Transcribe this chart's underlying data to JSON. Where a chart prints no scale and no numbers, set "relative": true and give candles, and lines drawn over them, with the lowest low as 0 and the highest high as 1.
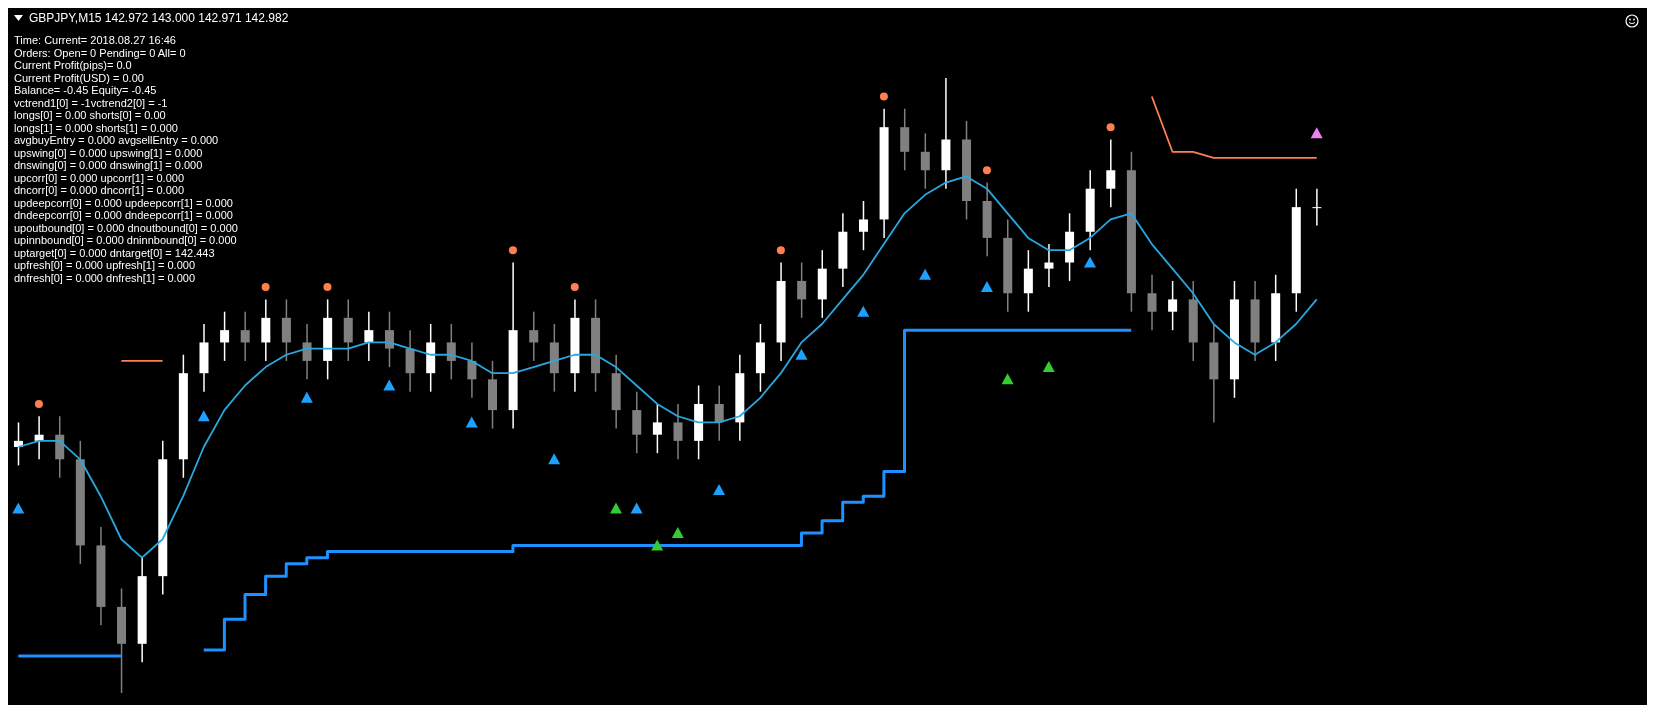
{
  "chart_data": {
    "type": "candlestick",
    "title": "GBPJPY,M15  142.972 143.000 142.971 142.982",
    "relative": true,
    "categories": [
      null,
      null,
      null,
      null,
      null,
      null,
      null,
      null,
      null,
      null,
      null,
      null,
      null,
      null,
      null,
      null,
      null,
      null,
      null,
      null,
      null,
      null,
      null,
      null,
      null,
      null,
      null,
      null,
      null,
      null,
      null,
      null,
      null,
      null,
      null,
      null,
      null,
      null,
      null,
      null,
      null,
      null,
      null,
      null,
      null,
      null,
      null,
      null,
      null,
      null,
      null,
      null,
      null,
      null,
      null,
      null,
      null,
      null,
      null,
      null,
      null,
      null,
      null,
      null
    ],
    "ohlc": [
      [
        0.4,
        0.44,
        0.37,
        0.41
      ],
      [
        0.41,
        0.45,
        0.38,
        0.42
      ],
      [
        0.42,
        0.45,
        0.35,
        0.38
      ],
      [
        0.38,
        0.41,
        0.21,
        0.24
      ],
      [
        0.24,
        0.27,
        0.11,
        0.14
      ],
      [
        0.14,
        0.17,
        0,
        0.08
      ],
      [
        0.08,
        0.22,
        0.05,
        0.19
      ],
      [
        0.19,
        0.41,
        0.16,
        0.38
      ],
      [
        0.38,
        0.55,
        0.35,
        0.52
      ],
      [
        0.52,
        0.6,
        0.49,
        0.57
      ],
      [
        0.57,
        0.62,
        0.54,
        0.59
      ],
      [
        0.59,
        0.62,
        0.54,
        0.57
      ],
      [
        0.57,
        0.64,
        0.54,
        0.61
      ],
      [
        0.61,
        0.64,
        0.54,
        0.57
      ],
      [
        0.57,
        0.6,
        0.51,
        0.54
      ],
      [
        0.54,
        0.64,
        0.51,
        0.61
      ],
      [
        0.61,
        0.64,
        0.54,
        0.57
      ],
      [
        0.57,
        0.62,
        0.54,
        0.59
      ],
      [
        0.59,
        0.62,
        0.53,
        0.56
      ],
      [
        0.56,
        0.59,
        0.49,
        0.52
      ],
      [
        0.52,
        0.6,
        0.49,
        0.57
      ],
      [
        0.57,
        0.6,
        0.51,
        0.54
      ],
      [
        0.54,
        0.57,
        0.48,
        0.51
      ],
      [
        0.51,
        0.54,
        0.43,
        0.46
      ],
      [
        0.46,
        0.7,
        0.43,
        0.59
      ],
      [
        0.59,
        0.62,
        0.54,
        0.57
      ],
      [
        0.57,
        0.6,
        0.49,
        0.52
      ],
      [
        0.52,
        0.64,
        0.49,
        0.61
      ],
      [
        0.61,
        0.64,
        0.49,
        0.52
      ],
      [
        0.52,
        0.55,
        0.43,
        0.46
      ],
      [
        0.46,
        0.49,
        0.39,
        0.42
      ],
      [
        0.42,
        0.47,
        0.39,
        0.44
      ],
      [
        0.44,
        0.47,
        0.38,
        0.41
      ],
      [
        0.41,
        0.5,
        0.38,
        0.47
      ],
      [
        0.47,
        0.5,
        0.41,
        0.44
      ],
      [
        0.44,
        0.55,
        0.41,
        0.52
      ],
      [
        0.52,
        0.6,
        0.49,
        0.57
      ],
      [
        0.57,
        0.7,
        0.54,
        0.67
      ],
      [
        0.67,
        0.7,
        0.61,
        0.64
      ],
      [
        0.64,
        0.72,
        0.61,
        0.69
      ],
      [
        0.69,
        0.78,
        0.66,
        0.75
      ],
      [
        0.75,
        0.8,
        0.72,
        0.77
      ],
      [
        0.77,
        0.95,
        0.74,
        0.92
      ],
      [
        0.92,
        0.95,
        0.85,
        0.88
      ],
      [
        0.88,
        0.91,
        0.82,
        0.85
      ],
      [
        0.85,
        1,
        0.82,
        0.9
      ],
      [
        0.9,
        0.93,
        0.77,
        0.8
      ],
      [
        0.8,
        0.83,
        0.71,
        0.74
      ],
      [
        0.74,
        0.77,
        0.62,
        0.65
      ],
      [
        0.65,
        0.72,
        0.62,
        0.69
      ],
      [
        0.69,
        0.73,
        0.66,
        0.7
      ],
      [
        0.7,
        0.78,
        0.67,
        0.75
      ],
      [
        0.75,
        0.85,
        0.72,
        0.82
      ],
      [
        0.82,
        0.9,
        0.79,
        0.85
      ],
      [
        0.85,
        0.88,
        0.62,
        0.65
      ],
      [
        0.65,
        0.68,
        0.59,
        0.62
      ],
      [
        0.62,
        0.67,
        0.59,
        0.64
      ],
      [
        0.64,
        0.67,
        0.54,
        0.57
      ],
      [
        0.57,
        0.6,
        0.44,
        0.51
      ],
      [
        0.51,
        0.67,
        0.48,
        0.64
      ],
      [
        0.64,
        0.67,
        0.54,
        0.57
      ],
      [
        0.57,
        0.68,
        0.54,
        0.65
      ],
      [
        0.65,
        0.82,
        0.62,
        0.79
      ],
      [
        0.79,
        0.82,
        0.76,
        0.79
      ]
    ],
    "colors": [
      "#ffffff",
      "#ffffff",
      "#808080",
      "#808080",
      "#808080",
      "#808080",
      "#ffffff",
      "#ffffff",
      "#ffffff",
      "#ffffff",
      "#ffffff",
      "#808080",
      "#ffffff",
      "#808080",
      "#808080",
      "#ffffff",
      "#808080",
      "#ffffff",
      "#808080",
      "#808080",
      "#ffffff",
      "#808080",
      "#808080",
      "#808080",
      "#ffffff",
      "#808080",
      "#808080",
      "#ffffff",
      "#808080",
      "#808080",
      "#808080",
      "#ffffff",
      "#808080",
      "#ffffff",
      "#808080",
      "#ffffff",
      "#ffffff",
      "#ffffff",
      "#808080",
      "#ffffff",
      "#ffffff",
      "#ffffff",
      "#ffffff",
      "#808080",
      "#808080",
      "#ffffff",
      "#808080",
      "#808080",
      "#808080",
      "#ffffff",
      "#ffffff",
      "#ffffff",
      "#ffffff",
      "#ffffff",
      "#808080",
      "#808080",
      "#ffffff",
      "#808080",
      "#808080",
      "#ffffff",
      "#808080",
      "#ffffff",
      "#ffffff",
      "#ffffff"
    ],
    "series": [
      {
        "type": "line",
        "color": "#29a8e0",
        "values": [
          0.4,
          0.41,
          0.41,
          0.38,
          0.32,
          0.25,
          0.22,
          0.25,
          0.32,
          0.4,
          0.46,
          0.5,
          0.53,
          0.55,
          0.56,
          0.56,
          0.56,
          0.57,
          0.57,
          0.56,
          0.55,
          0.55,
          0.54,
          0.52,
          0.52,
          0.53,
          0.54,
          0.55,
          0.55,
          0.53,
          0.5,
          0.47,
          0.45,
          0.44,
          0.44,
          0.45,
          0.48,
          0.52,
          0.57,
          0.6,
          0.64,
          0.68,
          0.73,
          0.78,
          0.81,
          0.83,
          0.84,
          0.82,
          0.78,
          0.74,
          0.72,
          0.72,
          0.74,
          0.77,
          0.78,
          0.73,
          0.69,
          0.65,
          0.6,
          0.57,
          0.55,
          0.57,
          0.6,
          0.64
        ]
      },
      {
        "type": "step",
        "color": "#1e90ff",
        "values": [
          0.06,
          0.06,
          0.06,
          0.06,
          0.06,
          0.06,
          null,
          null,
          null,
          0.07,
          0.12,
          0.16,
          0.19,
          0.21,
          0.22,
          0.23,
          0.23,
          0.23,
          0.23,
          0.23,
          0.23,
          0.23,
          0.23,
          0.23,
          0.24,
          0.24,
          0.24,
          0.24,
          0.24,
          0.24,
          0.24,
          0.24,
          0.24,
          0.24,
          0.24,
          0.24,
          0.24,
          0.24,
          0.26,
          0.28,
          0.31,
          0.32,
          0.36,
          0.59,
          0.59,
          0.59,
          0.59,
          0.59,
          0.59,
          0.59,
          0.59,
          0.59,
          0.59,
          0.59,
          0.59,
          null,
          null,
          null,
          null,
          null,
          null,
          null,
          null,
          null
        ]
      },
      {
        "type": "line",
        "color": "#ff7f50",
        "values": [
          null,
          null,
          null,
          null,
          null,
          0.54,
          0.54,
          0.54,
          null,
          null,
          null,
          null,
          null,
          null,
          null,
          null,
          null,
          null,
          null,
          null,
          null,
          null,
          null,
          null,
          null,
          null,
          null,
          null,
          null,
          null,
          null,
          null,
          null,
          null,
          null,
          null,
          null,
          null,
          null,
          null,
          null,
          null,
          null,
          null,
          null,
          null,
          null,
          null,
          null,
          null,
          null,
          null,
          null,
          null,
          null,
          0.97,
          0.88,
          0.88,
          0.87,
          0.87,
          0.87,
          0.87,
          0.87,
          0.87
        ]
      },
      {
        "type": "scatter",
        "color": "#ff7f50",
        "marker": "circle",
        "values": [
          null,
          0.47,
          null,
          null,
          null,
          null,
          null,
          null,
          null,
          null,
          null,
          null,
          0.66,
          null,
          null,
          0.66,
          null,
          null,
          null,
          null,
          null,
          null,
          null,
          null,
          0.72,
          null,
          null,
          0.66,
          null,
          null,
          null,
          null,
          null,
          null,
          null,
          null,
          null,
          0.72,
          null,
          null,
          null,
          null,
          0.97,
          null,
          null,
          null,
          null,
          0.85,
          null,
          null,
          null,
          null,
          null,
          0.92,
          null,
          null,
          null,
          null,
          null,
          null,
          null,
          null,
          null,
          null
        ]
      },
      {
        "type": "scatter",
        "color": "#1ea0ff",
        "marker": "triangle",
        "values": [
          0.3,
          null,
          null,
          null,
          null,
          null,
          null,
          null,
          null,
          0.45,
          null,
          null,
          null,
          null,
          0.48,
          null,
          null,
          null,
          0.5,
          null,
          null,
          null,
          0.44,
          null,
          null,
          null,
          0.38,
          null,
          null,
          null,
          0.3,
          null,
          null,
          null,
          0.33,
          null,
          null,
          null,
          0.55,
          null,
          null,
          0.62,
          null,
          null,
          0.68,
          null,
          null,
          0.66,
          null,
          null,
          null,
          null,
          0.7,
          null,
          null,
          null,
          null,
          null,
          null,
          null,
          null,
          null,
          null,
          null
        ]
      },
      {
        "type": "scatter",
        "color": "#32cd32",
        "marker": "triangle",
        "values": [
          null,
          null,
          null,
          null,
          null,
          null,
          null,
          null,
          null,
          null,
          null,
          null,
          null,
          null,
          null,
          null,
          null,
          null,
          null,
          null,
          null,
          null,
          null,
          null,
          null,
          null,
          null,
          null,
          null,
          0.3,
          null,
          0.24,
          0.26,
          null,
          null,
          null,
          null,
          null,
          null,
          null,
          null,
          null,
          null,
          null,
          null,
          null,
          null,
          null,
          0.51,
          null,
          0.53,
          null,
          null,
          null,
          null,
          null,
          null,
          null,
          null,
          null,
          null,
          null,
          null,
          null
        ]
      },
      {
        "type": "scatter",
        "color": "#ee82ee",
        "marker": "triangle",
        "values": [
          null,
          null,
          null,
          null,
          null,
          null,
          null,
          null,
          null,
          null,
          null,
          null,
          null,
          null,
          null,
          null,
          null,
          null,
          null,
          null,
          null,
          null,
          null,
          null,
          null,
          null,
          null,
          null,
          null,
          null,
          null,
          null,
          null,
          null,
          null,
          null,
          null,
          null,
          null,
          null,
          null,
          null,
          null,
          null,
          null,
          null,
          null,
          null,
          null,
          null,
          null,
          null,
          null,
          null,
          null,
          null,
          null,
          null,
          null,
          null,
          null,
          null,
          null,
          0.91
        ]
      }
    ],
    "annotations": [
      "Time: Current= 2018.08.27 16:46",
      "Orders: Open= 0 Pending= 0 All= 0",
      "Current Profit(pips)= 0.0",
      "Current Profit(USD) = 0.00",
      "Balance= -0.45 Equity= -0.45",
      "vctrend1[0] = -1vctrend2[0] = -1",
      "longs[0] = 0.00 shorts[0] = 0.00",
      "longs[1] = 0.000 shorts[1] = 0.000",
      "avgbuyEntry = 0.000 avgsellEntry = 0.000",
      "upswing[0] = 0.000 upswing[1] = 0.000",
      "dnswing[0] = 0.000 dnswing[1] = 0.000",
      "upcorr[0] = 0.000 upcorr[1] = 0.000",
      "dncorr[0] = 0.000 dncorr[1] = 0.000",
      "updeepcorr[0] = 0.000 updeepcorr[1] = 0.000",
      "dndeepcorr[0] = 0.000 dndeepcorr[1] = 0.000",
      "upoutbound[0] = 0.000 dnoutbound[0] = 0.000",
      "upinnbound[0] = 0.000 dninnbound[0] = 0.000",
      "uptarget[0] = 0.000 dntarget[0] = 142.443",
      "upfresh[0] = 0.000 upfresh[1] = 0.000",
      "dnfresh[0] = 0.000 dnfresh[1] = 0.000"
    ]
  }
}
